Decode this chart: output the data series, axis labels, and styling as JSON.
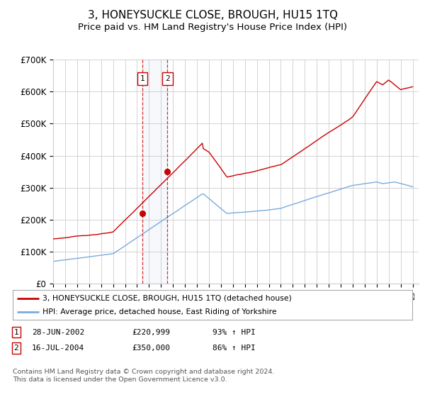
{
  "title": "3, HONEYSUCKLE CLOSE, BROUGH, HU15 1TQ",
  "subtitle": "Price paid vs. HM Land Registry's House Price Index (HPI)",
  "title_fontsize": 11,
  "subtitle_fontsize": 9.5,
  "ylim": [
    0,
    700000
  ],
  "yticks": [
    0,
    100000,
    200000,
    300000,
    400000,
    500000,
    600000,
    700000
  ],
  "ytick_labels": [
    "£0",
    "£100K",
    "£200K",
    "£300K",
    "£400K",
    "£500K",
    "£600K",
    "£700K"
  ],
  "legend_line1": "3, HONEYSUCKLE CLOSE, BROUGH, HU15 1TQ (detached house)",
  "legend_line2": "HPI: Average price, detached house, East Riding of Yorkshire",
  "legend_color1": "#cc0000",
  "legend_color2": "#7aabdc",
  "transaction1_date_x": 2002.46,
  "transaction1_price": 220999,
  "transaction2_date_x": 2004.54,
  "transaction2_price": 350000,
  "table_row1": [
    "1",
    "28-JUN-2002",
    "£220,999",
    "93% ↑ HPI"
  ],
  "table_row2": [
    "2",
    "16-JUL-2004",
    "£350,000",
    "86% ↑ HPI"
  ],
  "footer_line1": "Contains HM Land Registry data © Crown copyright and database right 2024.",
  "footer_line2": "This data is licensed under the Open Government Licence v3.0.",
  "background_color": "#ffffff",
  "grid_color": "#cccccc",
  "hpi_line_color": "#7aabdc",
  "price_line_color": "#cc0000",
  "xlim_start": 1995.0,
  "xlim_end": 2025.5
}
